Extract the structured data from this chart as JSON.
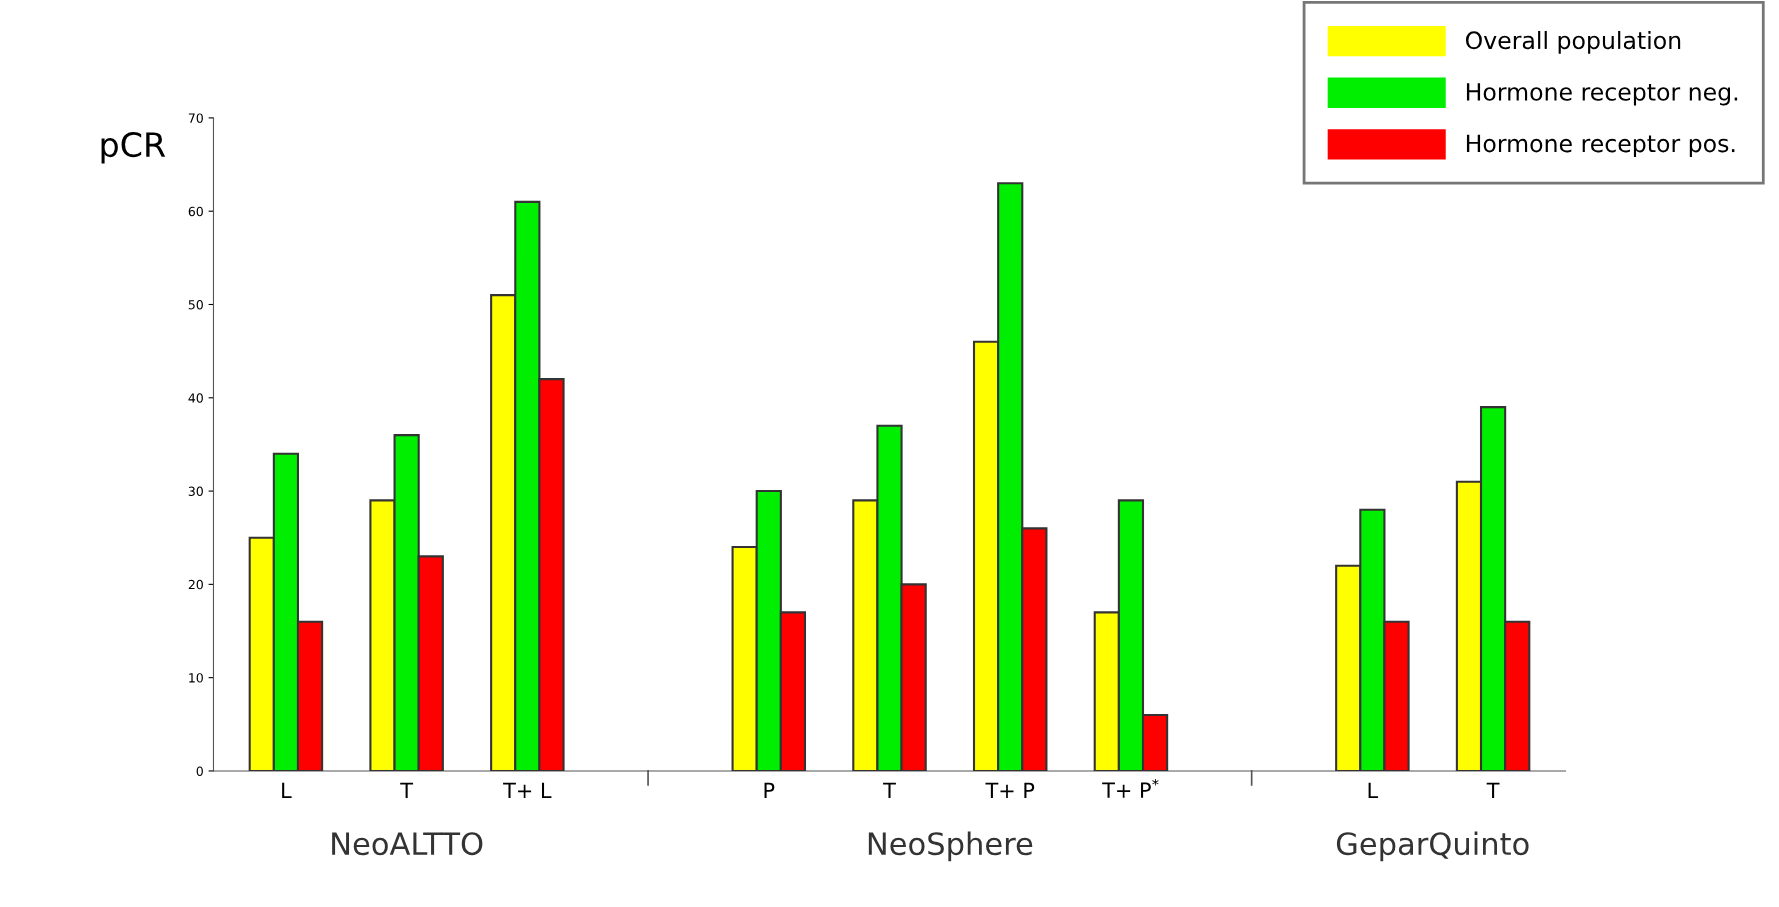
{
  "chart_data": {
    "type": "bar",
    "ylabel": "pCR",
    "categories": [
      "L",
      "T",
      "T+ L",
      null,
      "P",
      "T",
      "T+ P",
      "T+ P$^{*}$",
      null,
      "L",
      "T"
    ],
    "series": [
      {
        "name": "Overall population",
        "color": "#ffff00",
        "values": [
          25,
          29,
          51,
          null,
          24,
          29,
          46,
          17,
          null,
          22,
          31
        ]
      },
      {
        "name": "Hormone receptor neg.",
        "color": "#00ee00",
        "values": [
          34,
          36,
          61,
          null,
          30,
          37,
          63,
          29,
          null,
          28,
          39
        ]
      },
      {
        "name": "Hormone receptor pos.",
        "color": "#ff0000",
        "values": [
          16,
          23,
          42,
          null,
          17,
          20,
          26,
          6,
          null,
          16,
          16
        ]
      }
    ],
    "ylim": [
      0,
      70
    ],
    "yticks": [
      0,
      10,
      20,
      30,
      40,
      50,
      60,
      70
    ],
    "annotations": [
      "NeoALTTO",
      "NeoSphere",
      "GeparQuinto"
    ],
    "legend": "top right",
    "grid": false
  }
}
